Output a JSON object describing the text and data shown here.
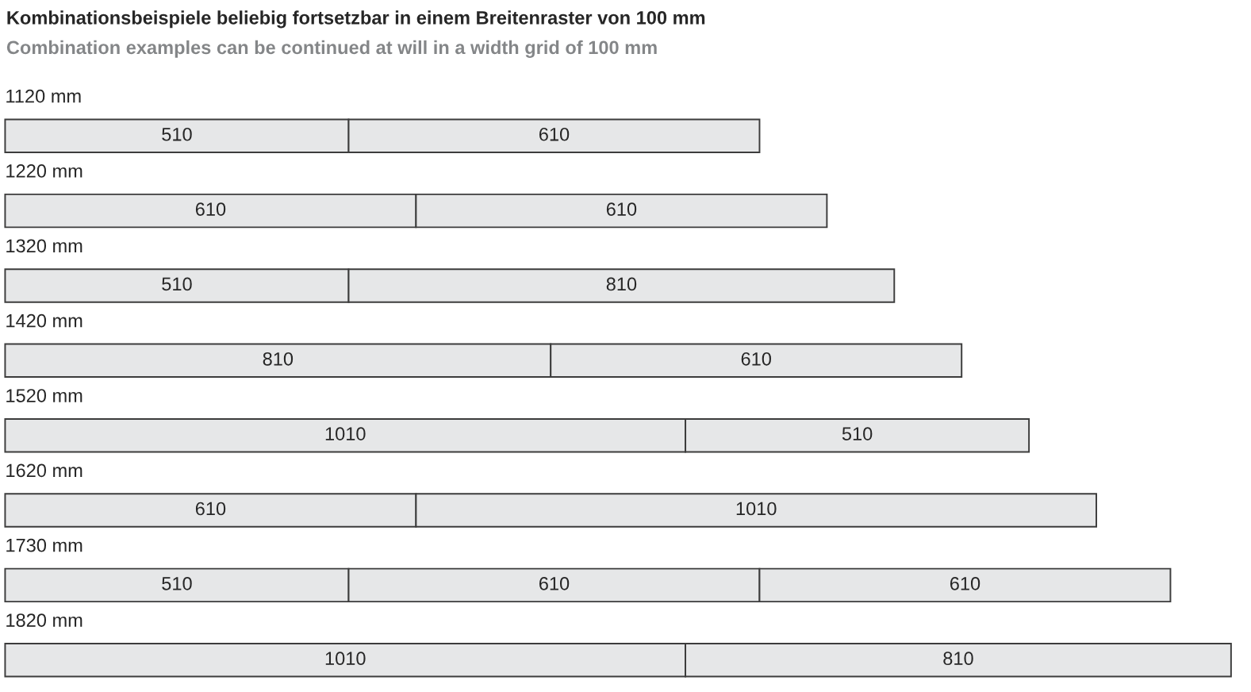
{
  "chart_data": {
    "type": "bar",
    "orientation": "horizontal",
    "stacked": true,
    "data_labels": true,
    "title": "Kombinationsbeispiele beliebig fortsetzbar in einem Breitenraster von 100 mm",
    "subtitle": "Combination examples can be continued at will in a width grid of 100 mm",
    "categories": [
      "1120 mm",
      "1220 mm",
      "1320 mm",
      "1420 mm",
      "1520 mm",
      "1620 mm",
      "1730 mm",
      "1820 mm"
    ],
    "series": [
      {
        "color": "#e6e7e8",
        "values": [
          510,
          610,
          510,
          810,
          1010,
          610,
          510,
          1010
        ]
      },
      {
        "color": "#e6e7e8",
        "values": [
          610,
          610,
          810,
          610,
          510,
          1010,
          610,
          810
        ]
      },
      {
        "color": "#e6e7e8",
        "values": [
          null,
          null,
          null,
          null,
          null,
          null,
          610,
          null
        ]
      }
    ]
  }
}
